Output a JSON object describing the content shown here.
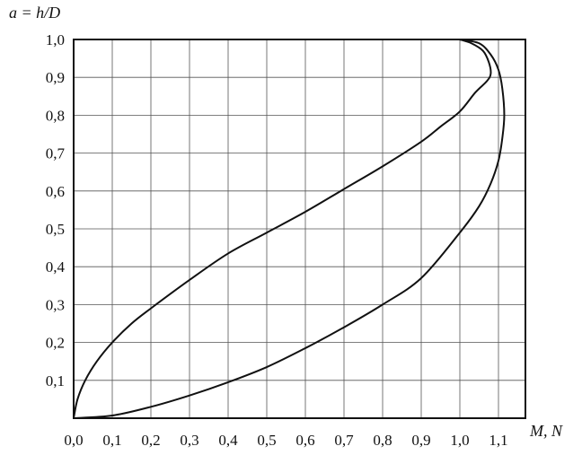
{
  "chart_data": {
    "type": "line",
    "title": "",
    "ylabel": "a = h/D",
    "xlabel": "M, N",
    "xlim": [
      0,
      1.15
    ],
    "ylim": [
      0,
      1.0
    ],
    "grid": true,
    "xticks": [
      "0,0",
      "0,1",
      "0,2",
      "0,3",
      "0,4",
      "0,5",
      "0,6",
      "0,7",
      "0,8",
      "0,9",
      "1,0",
      "1,1"
    ],
    "yticks": [
      "0,1",
      "0,2",
      "0,3",
      "0,4",
      "0,5",
      "0,6",
      "0,7",
      "0,8",
      "0,9",
      "1,0"
    ],
    "series": [
      {
        "x": [
          0,
          0.01,
          0.03,
          0.06,
          0.1,
          0.15,
          0.2,
          0.3,
          0.4,
          0.5,
          0.6,
          0.7,
          0.8,
          0.9,
          0.95,
          1.0,
          1.04,
          1.07,
          1.08,
          1.075,
          1.06,
          1.03,
          1.0
        ],
        "y": [
          0,
          0.05,
          0.1,
          0.15,
          0.2,
          0.25,
          0.29,
          0.365,
          0.435,
          0.49,
          0.545,
          0.605,
          0.665,
          0.73,
          0.77,
          0.81,
          0.86,
          0.89,
          0.91,
          0.94,
          0.97,
          0.99,
          1.0
        ]
      },
      {
        "x": [
          0,
          0.1,
          0.2,
          0.3,
          0.4,
          0.5,
          0.6,
          0.7,
          0.8,
          0.9,
          1.0,
          1.05,
          1.08,
          1.1,
          1.11,
          1.115,
          1.11,
          1.1,
          1.08,
          1.05,
          1.0
        ],
        "y": [
          0,
          0.007,
          0.03,
          0.06,
          0.095,
          0.135,
          0.185,
          0.24,
          0.3,
          0.37,
          0.49,
          0.56,
          0.62,
          0.68,
          0.74,
          0.8,
          0.87,
          0.92,
          0.96,
          0.99,
          1.0
        ]
      }
    ]
  }
}
